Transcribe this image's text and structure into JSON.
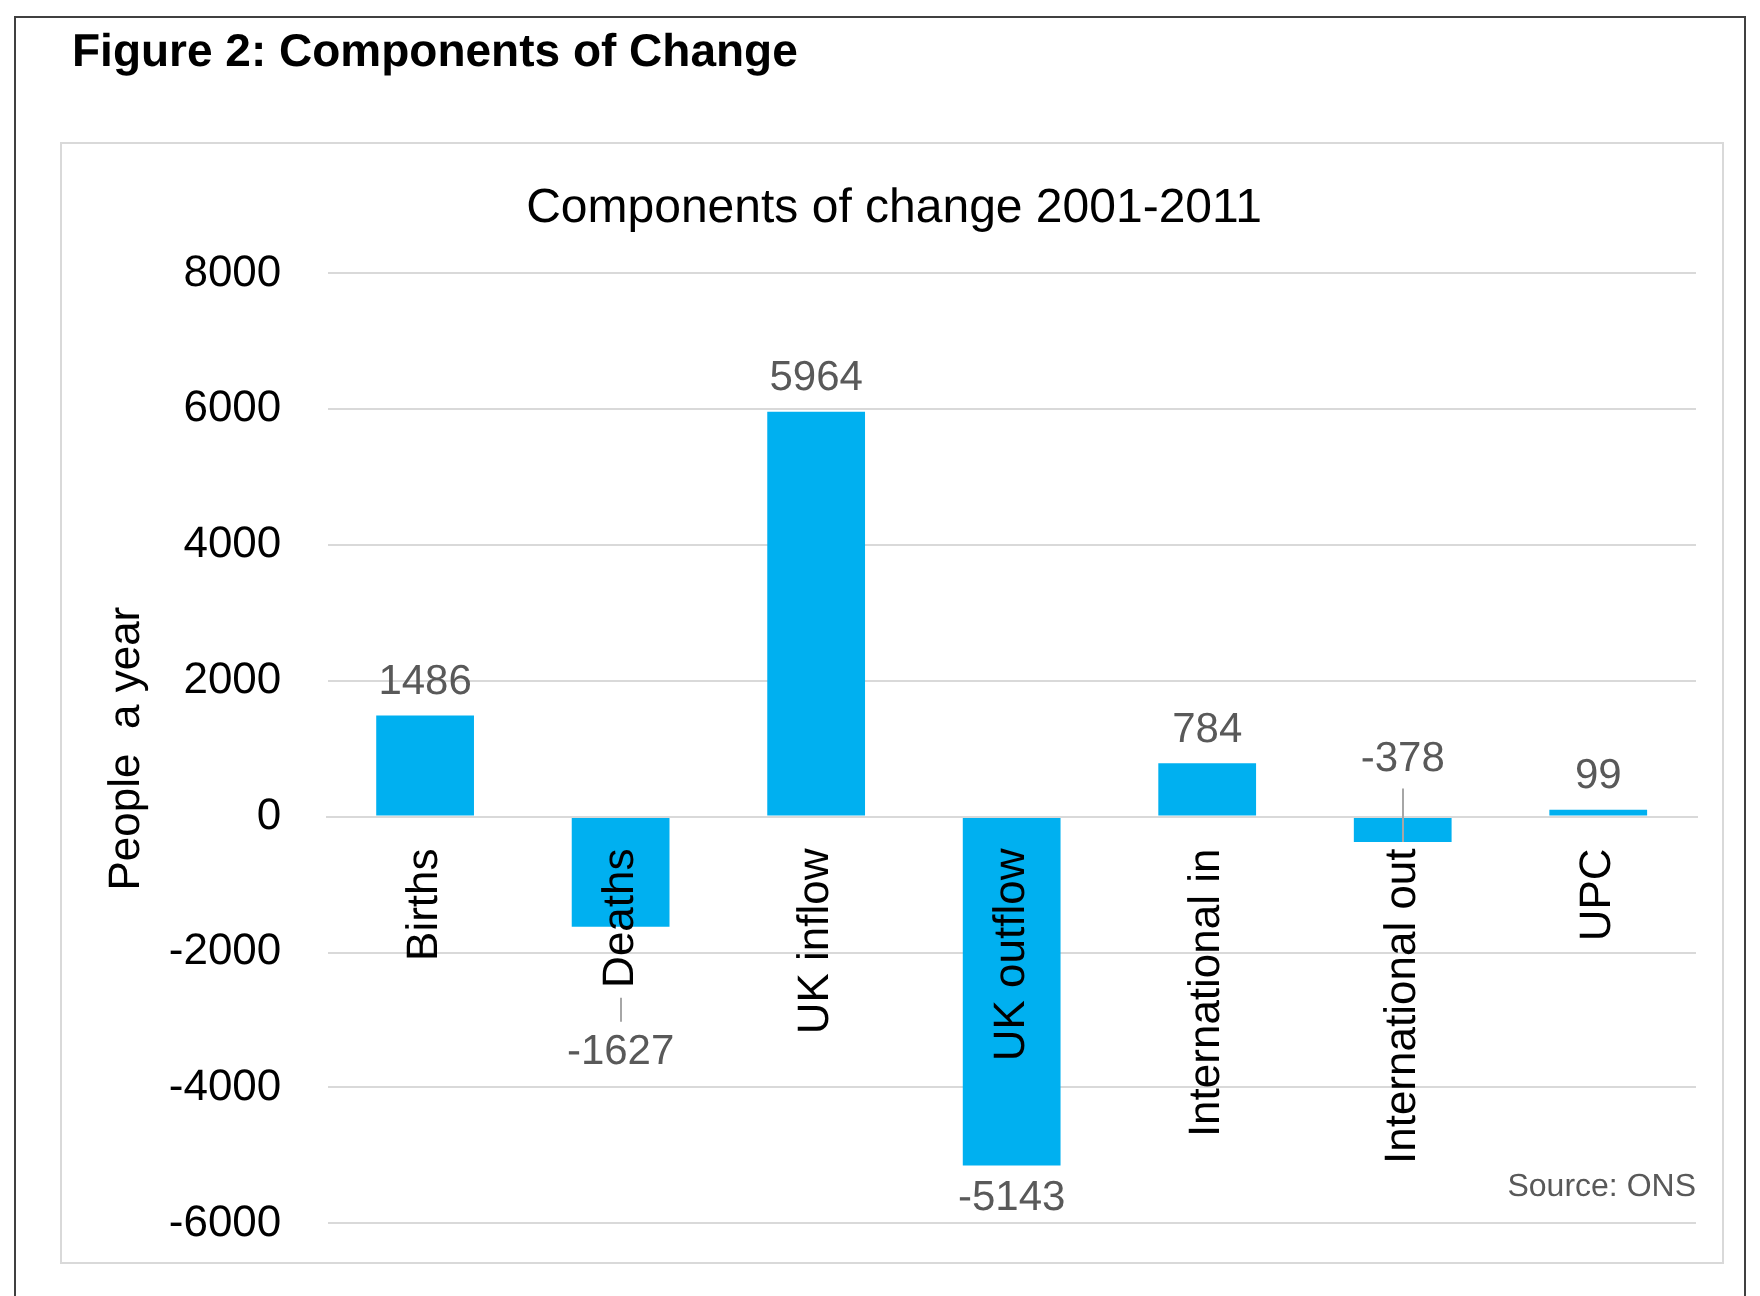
{
  "chart_data": {
    "type": "bar",
    "title": "Figure 2: Components of Change",
    "subtitle": "Components of change 2001-2011",
    "ylabel": "People  a year",
    "categories": [
      "Births",
      "Deaths",
      "UK inflow",
      "UK outflow",
      "International in",
      "International out",
      "UPC"
    ],
    "values": [
      1486,
      -1627,
      5964,
      -5143,
      784,
      -378,
      99
    ],
    "color": "#00b0f0",
    "ylim": [
      -6000,
      8000
    ],
    "yticks": [
      -6000,
      -4000,
      -2000,
      0,
      2000,
      4000,
      6000,
      8000
    ],
    "grid": "y",
    "data_labels": true,
    "annotations": [
      "Source: ONS"
    ]
  }
}
